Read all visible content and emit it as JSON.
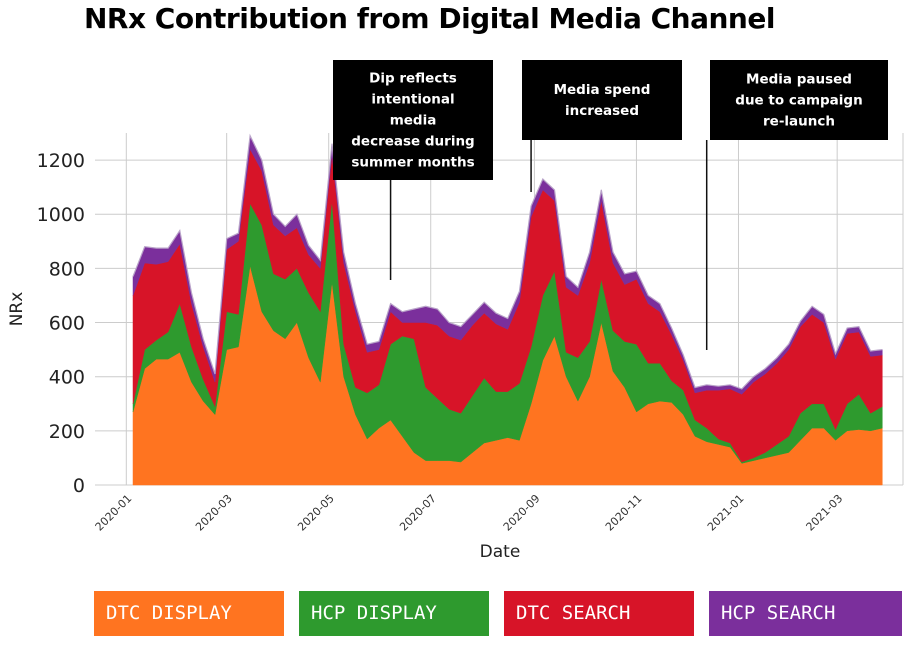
{
  "chart_data": {
    "type": "area",
    "stacked": true,
    "title": "NRx Contribution from Digital Media Channel",
    "xlabel": "Date",
    "ylabel": "NRx",
    "ylim": [
      0,
      1300
    ],
    "yticks": [
      0,
      200,
      400,
      600,
      800,
      1000,
      1200
    ],
    "xticks": [
      "2020-01",
      "2020-03",
      "2020-05",
      "2020-07",
      "2020-09",
      "2020-11",
      "2021-01",
      "2021-03"
    ],
    "grid": true,
    "x": [
      "2020-01-05",
      "2020-01-12",
      "2020-01-19",
      "2020-01-26",
      "2020-02-02",
      "2020-02-09",
      "2020-02-16",
      "2020-02-23",
      "2020-03-01",
      "2020-03-08",
      "2020-03-15",
      "2020-03-22",
      "2020-03-29",
      "2020-04-05",
      "2020-04-12",
      "2020-04-19",
      "2020-04-26",
      "2020-05-03",
      "2020-05-10",
      "2020-05-17",
      "2020-05-24",
      "2020-05-31",
      "2020-06-07",
      "2020-06-14",
      "2020-06-21",
      "2020-06-28",
      "2020-07-05",
      "2020-07-12",
      "2020-07-19",
      "2020-07-26",
      "2020-08-02",
      "2020-08-09",
      "2020-08-16",
      "2020-08-23",
      "2020-08-30",
      "2020-09-06",
      "2020-09-13",
      "2020-09-20",
      "2020-09-27",
      "2020-10-04",
      "2020-10-11",
      "2020-10-18",
      "2020-10-25",
      "2020-11-01",
      "2020-11-08",
      "2020-11-15",
      "2020-11-22",
      "2020-11-29",
      "2020-12-06",
      "2020-12-13",
      "2020-12-20",
      "2020-12-27",
      "2021-01-03",
      "2021-01-10",
      "2021-01-17",
      "2021-01-24",
      "2021-01-31",
      "2021-02-07",
      "2021-02-14",
      "2021-02-21",
      "2021-02-28",
      "2021-03-07",
      "2021-03-14",
      "2021-03-21",
      "2021-03-28"
    ],
    "series": [
      {
        "name": "DTC DISPLAY",
        "color": "#FF7420",
        "values": [
          270,
          430,
          465,
          465,
          490,
          380,
          310,
          260,
          500,
          510,
          810,
          640,
          570,
          540,
          600,
          470,
          380,
          750,
          400,
          260,
          170,
          210,
          240,
          180,
          120,
          90,
          90,
          90,
          85,
          120,
          155,
          165,
          175,
          165,
          300,
          460,
          550,
          400,
          310,
          400,
          600,
          420,
          360,
          270,
          300,
          310,
          305,
          260,
          180,
          160,
          150,
          140,
          80,
          90,
          100,
          110,
          120,
          165,
          210,
          210,
          165,
          200,
          205,
          200,
          210
        ]
      },
      {
        "name": "HCP DISPLAY",
        "color": "#2E9A2E",
        "values": [
          30,
          70,
          70,
          100,
          180,
          130,
          80,
          30,
          140,
          120,
          230,
          320,
          210,
          220,
          200,
          240,
          260,
          300,
          120,
          100,
          170,
          160,
          280,
          370,
          420,
          270,
          230,
          190,
          180,
          210,
          240,
          180,
          170,
          210,
          210,
          240,
          240,
          90,
          160,
          130,
          160,
          150,
          170,
          250,
          150,
          140,
          80,
          90,
          60,
          50,
          20,
          15,
          5,
          10,
          20,
          40,
          60,
          100,
          90,
          90,
          40,
          100,
          130,
          65,
          80
        ]
      },
      {
        "name": "DTC SEARCH",
        "color": "#D71428",
        "values": [
          400,
          320,
          280,
          260,
          220,
          160,
          120,
          90,
          230,
          270,
          200,
          200,
          180,
          160,
          150,
          140,
          160,
          170,
          300,
          280,
          150,
          130,
          120,
          50,
          60,
          240,
          270,
          270,
          270,
          260,
          240,
          250,
          230,
          300,
          480,
          390,
          260,
          240,
          230,
          290,
          290,
          250,
          210,
          240,
          220,
          190,
          170,
          110,
          100,
          140,
          180,
          200,
          250,
          280,
          290,
          300,
          320,
          320,
          330,
          300,
          260,
          260,
          230,
          210,
          190
        ]
      },
      {
        "name": "HCP SEARCH",
        "color": "#7B2F9C",
        "values": [
          70,
          60,
          60,
          50,
          50,
          40,
          30,
          30,
          40,
          30,
          50,
          40,
          40,
          35,
          50,
          35,
          30,
          40,
          40,
          30,
          30,
          30,
          30,
          40,
          50,
          60,
          60,
          50,
          50,
          40,
          40,
          40,
          40,
          40,
          40,
          40,
          40,
          40,
          30,
          40,
          40,
          40,
          40,
          30,
          30,
          30,
          25,
          20,
          20,
          20,
          15,
          15,
          20,
          20,
          20,
          20,
          20,
          20,
          30,
          30,
          20,
          20,
          20,
          20,
          20
        ]
      }
    ],
    "annotations": [
      {
        "lines": [
          "Dip reflects",
          "intentional",
          "media",
          "decrease during",
          "summer months"
        ],
        "x": "2020-06-07"
      },
      {
        "lines": [
          "Media spend",
          "increased"
        ],
        "x": "2020-08-30"
      },
      {
        "lines": [
          "Media paused",
          "due to campaign",
          "re-launch"
        ],
        "x": "2020-12-13"
      }
    ],
    "legend": {
      "position": "bottom"
    }
  }
}
